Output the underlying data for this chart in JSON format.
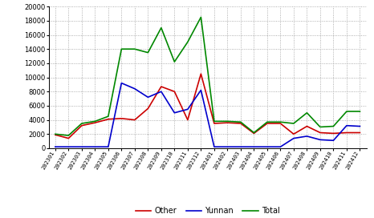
{
  "labels": [
    "202301",
    "202302",
    "202303",
    "202304",
    "202305",
    "202306",
    "202307",
    "202308",
    "202309",
    "202310",
    "202311",
    "202312",
    "202401",
    "202402",
    "202403",
    "202404",
    "202405",
    "202406",
    "202407",
    "202408",
    "202409",
    "202410",
    "202411",
    "202412"
  ],
  "other": [
    1900,
    1400,
    3200,
    3600,
    4100,
    4200,
    4000,
    5600,
    8700,
    8000,
    4000,
    10500,
    3500,
    3600,
    3500,
    2100,
    3500,
    3500,
    2000,
    3100,
    2200,
    2100,
    2200,
    2200
  ],
  "yunnan": [
    200,
    200,
    200,
    200,
    200,
    9200,
    8400,
    7200,
    8000,
    5000,
    5500,
    8200,
    200,
    200,
    200,
    200,
    200,
    200,
    1400,
    1700,
    1200,
    1100,
    3200,
    3100
  ],
  "total": [
    2000,
    1800,
    3500,
    3800,
    4500,
    14000,
    14000,
    13500,
    17000,
    12200,
    15000,
    18500,
    3800,
    3800,
    3700,
    2200,
    3700,
    3700,
    3500,
    5000,
    3000,
    3100,
    5200,
    5200
  ],
  "other_color": "#cc0000",
  "yunnan_color": "#0000cc",
  "total_color": "#008800",
  "bg_color": "#ffffff",
  "ylim": [
    0,
    20000
  ],
  "yticks": [
    0,
    2000,
    4000,
    6000,
    8000,
    10000,
    12000,
    14000,
    16000,
    18000,
    20000
  ],
  "grid_color": "#999999",
  "linewidth": 1.2
}
